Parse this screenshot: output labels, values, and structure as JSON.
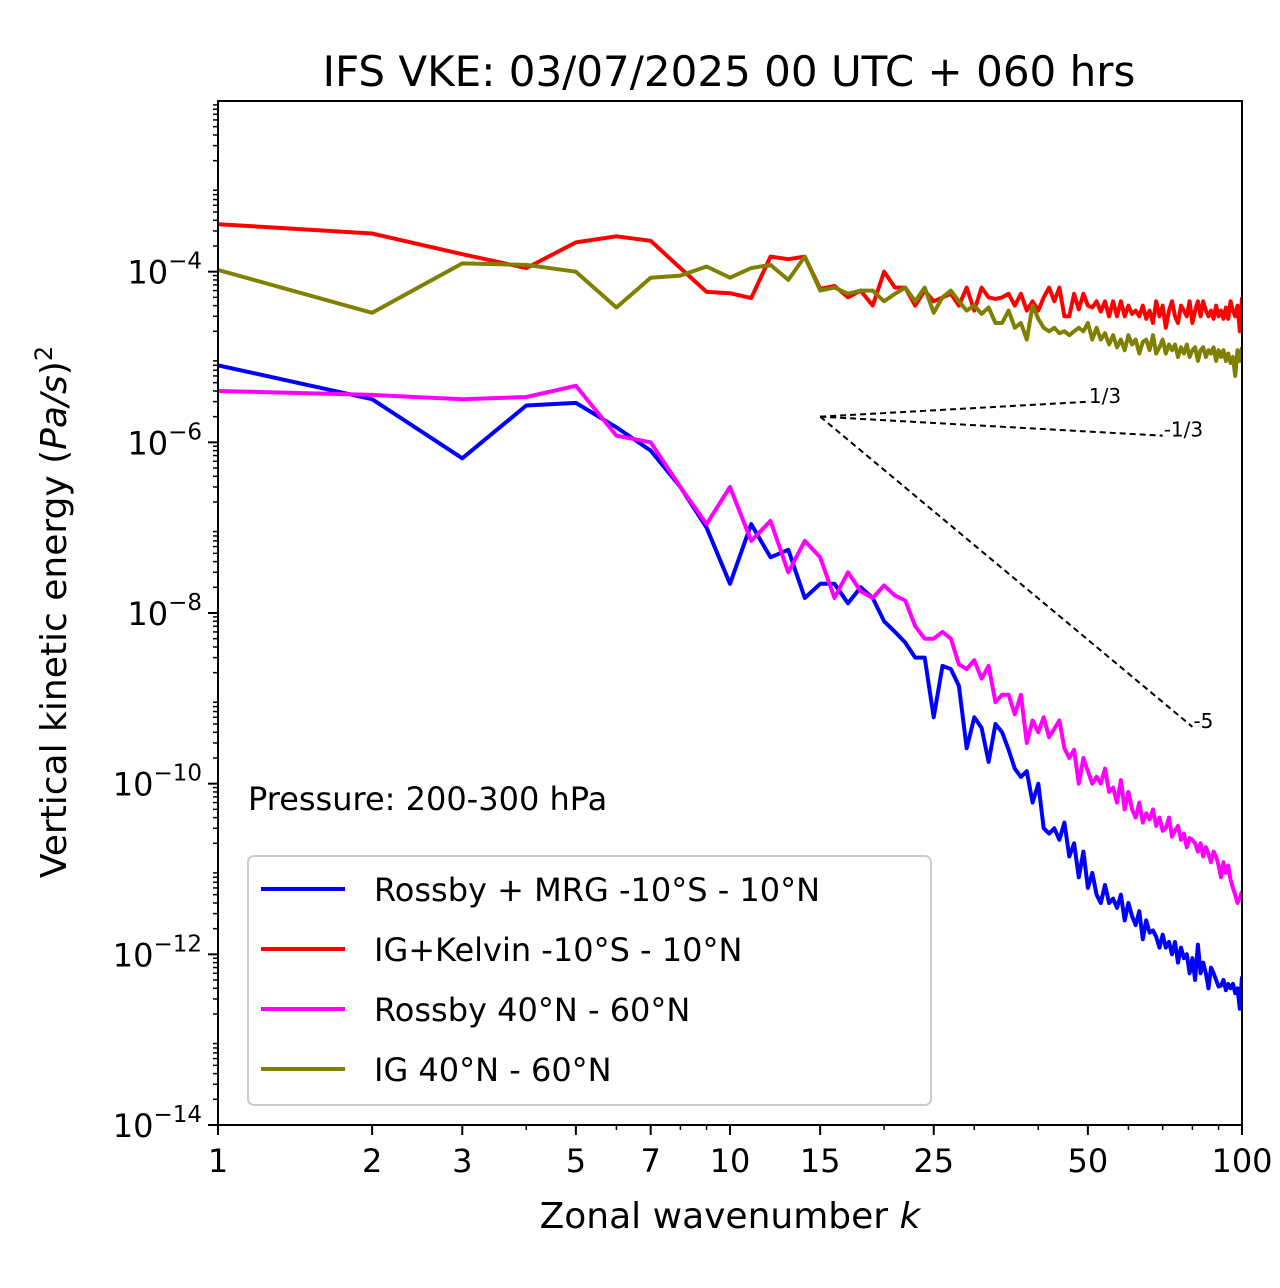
{
  "chart_data": {
    "type": "line",
    "title": "IFS VKE: 03/07/2025 00 UTC + 060 hrs",
    "xlabel": "Zonal wavenumber k",
    "ylabel": "Vertical kinetic energy (Pa/s)²",
    "x_scale": "log",
    "y_scale": "log",
    "xlim": [
      1,
      100
    ],
    "ylim": [
      1e-14,
      0.01
    ],
    "x_ticks": [
      {
        "value": 1,
        "label": "1"
      },
      {
        "value": 2,
        "label": "2"
      },
      {
        "value": 3,
        "label": "3"
      },
      {
        "value": 5,
        "label": "5"
      },
      {
        "value": 7,
        "label": "7"
      },
      {
        "value": 10,
        "label": "10"
      },
      {
        "value": 15,
        "label": "15"
      },
      {
        "value": 25,
        "label": "25"
      },
      {
        "value": 50,
        "label": "50"
      },
      {
        "value": 100,
        "label": "100"
      }
    ],
    "y_ticks": [
      {
        "value": 1e-14,
        "exponent": "−14"
      },
      {
        "value": 1e-12,
        "exponent": "−12"
      },
      {
        "value": 1e-10,
        "exponent": "−10"
      },
      {
        "value": 1e-08,
        "exponent": "−8"
      },
      {
        "value": 1e-06,
        "exponent": "−6"
      },
      {
        "value": 0.0001,
        "exponent": "−4"
      }
    ],
    "legend_position": "lower-left",
    "annotation": "Pressure: 200-300 hPa",
    "reference_slopes": [
      {
        "label": "1/3",
        "slope": 0.3333,
        "x": [
          15,
          50
        ],
        "y0": 2e-06
      },
      {
        "label": "-1/3",
        "slope": -0.3333,
        "x": [
          15,
          70
        ],
        "y0": 2e-06
      },
      {
        "label": "-5",
        "slope": -5,
        "x": [
          15,
          80
        ],
        "y0": 2e-06
      }
    ],
    "series": [
      {
        "name": "Rossby + MRG -10°S - 10°N",
        "color": "#0000ff",
        "x": [
          1,
          2,
          3,
          4,
          5,
          6,
          7,
          8,
          9,
          10,
          11,
          12,
          13,
          14,
          15,
          16,
          17,
          18,
          19,
          20,
          21,
          22,
          23,
          24,
          25,
          26,
          27,
          28,
          29,
          30,
          31,
          32,
          33,
          34,
          35,
          36,
          37,
          38,
          39,
          40,
          41,
          42,
          43,
          44,
          45,
          46,
          47,
          48,
          49,
          50,
          51,
          52,
          53,
          54,
          55,
          56,
          57,
          58,
          59,
          60,
          61,
          62,
          63,
          64,
          65,
          66,
          67,
          68,
          69,
          70,
          71,
          72,
          73,
          74,
          75,
          76,
          77,
          78,
          79,
          80,
          81,
          82,
          83,
          84,
          85,
          86,
          87,
          88,
          89,
          90,
          91,
          92,
          93,
          94,
          95,
          96,
          97,
          98,
          99,
          100
        ],
        "y": [
          8e-06,
          3.2e-06,
          6.5e-07,
          2.7e-06,
          2.9e-06,
          1.5e-06,
          8e-07,
          3e-07,
          1e-07,
          2.2e-08,
          1.1e-07,
          4.5e-08,
          5.5e-08,
          1.5e-08,
          2.2e-08,
          2.2e-08,
          1.3e-08,
          2e-08,
          1.5e-08,
          8e-09,
          6e-09,
          4.5e-09,
          3e-09,
          3e-09,
          6e-10,
          2.4e-09,
          2.2e-09,
          1.4e-09,
          2.6e-10,
          6e-10,
          4.5e-10,
          1.8e-10,
          5e-10,
          4e-10,
          2.5e-10,
          1.5e-10,
          1.2e-10,
          1.4e-10,
          6e-11,
          1e-10,
          3e-11,
          2.6e-11,
          3e-11,
          2.2e-11,
          3.5e-11,
          1.4e-11,
          2e-11,
          8e-12,
          1.6e-11,
          6e-12,
          9e-12,
          5e-12,
          4e-12,
          6.5e-12,
          4e-12,
          4.5e-12,
          3.5e-12,
          5e-12,
          2.5e-12,
          4e-12,
          2.8e-12,
          2.2e-12,
          3.2e-12,
          1.5e-12,
          2.5e-12,
          1.8e-12,
          1.9e-12,
          1.6e-12,
          1.2e-12,
          1.7e-12,
          1.2e-12,
          1.4e-12,
          1e-12,
          1.4e-12,
          8e-13,
          1.2e-12,
          9e-13,
          1e-12,
          6e-13,
          9e-13,
          5e-13,
          1.3e-12,
          6e-13,
          8e-13,
          6e-13,
          4e-13,
          7e-13,
          6e-13,
          5e-13,
          4.2e-13,
          4.3e-13,
          5e-13,
          3.8e-13,
          4.5e-13,
          4e-13,
          4.5e-13,
          3.5e-13,
          4e-13,
          2.3e-13,
          5.5e-13
        ]
      },
      {
        "name": "IG+Kelvin -10°S - 10°N",
        "color": "#ff0000",
        "x": [
          1,
          2,
          3,
          4,
          5,
          6,
          7,
          8,
          9,
          10,
          11,
          12,
          13,
          14,
          15,
          16,
          17,
          18,
          19,
          20,
          21,
          22,
          23,
          24,
          25,
          26,
          27,
          28,
          29,
          30,
          31,
          32,
          33,
          34,
          35,
          36,
          37,
          38,
          39,
          40,
          41,
          42,
          43,
          44,
          45,
          46,
          47,
          48,
          49,
          50,
          51,
          52,
          53,
          54,
          55,
          56,
          57,
          58,
          59,
          60,
          61,
          62,
          63,
          64,
          65,
          66,
          67,
          68,
          69,
          70,
          71,
          72,
          73,
          74,
          75,
          76,
          77,
          78,
          79,
          80,
          81,
          82,
          83,
          84,
          85,
          86,
          87,
          88,
          89,
          90,
          91,
          92,
          93,
          94,
          95,
          96,
          97,
          98,
          99,
          100
        ],
        "y": [
          0.00036,
          0.00028,
          0.00016,
          0.00011,
          0.00022,
          0.00026,
          0.00023,
          0.00011,
          5.8e-05,
          5.6e-05,
          4.9e-05,
          0.00015,
          0.00014,
          0.00015,
          6.3e-05,
          6.8e-05,
          5e-05,
          6e-05,
          4e-05,
          0.0001,
          6.5e-05,
          6.5e-05,
          4e-05,
          6e-05,
          4.5e-05,
          5e-05,
          5.5e-05,
          4e-05,
          6.5e-05,
          3.5e-05,
          6.5e-05,
          5e-05,
          4.8e-05,
          5e-05,
          5.5e-05,
          4e-05,
          5.5e-05,
          3.5e-05,
          4.5e-05,
          3.5e-05,
          5e-05,
          6.5e-05,
          4.5e-05,
          6.5e-05,
          3e-05,
          3e-05,
          5.5e-05,
          3.6e-05,
          5.5e-05,
          4e-05,
          3.8e-05,
          4.5e-05,
          3.4e-05,
          4.5e-05,
          3e-05,
          4.5e-05,
          3e-05,
          4.5e-05,
          3e-05,
          4e-05,
          3.2e-05,
          3.5e-05,
          3e-05,
          4e-05,
          2.8e-05,
          3.5e-05,
          2.5e-05,
          4.5e-05,
          3e-05,
          4e-05,
          2.2e-05,
          3.5e-05,
          4.5e-05,
          3e-05,
          2.5e-05,
          4e-05,
          3.5e-05,
          3e-05,
          4.5e-05,
          2.5e-05,
          3.5e-05,
          4.5e-05,
          3e-05,
          4.5e-05,
          3.5e-05,
          3e-05,
          3.5e-05,
          2.8e-05,
          4e-05,
          3e-05,
          3.5e-05,
          2.8e-05,
          3.8e-05,
          2.8e-05,
          4.5e-05,
          3.5e-05,
          3e-05,
          4e-05,
          2e-05,
          5e-05
        ]
      },
      {
        "name": "Rossby 40°N - 60°N",
        "color": "#ff00ff",
        "x": [
          1,
          2,
          3,
          4,
          5,
          6,
          7,
          8,
          9,
          10,
          11,
          12,
          13,
          14,
          15,
          16,
          17,
          18,
          19,
          20,
          21,
          22,
          23,
          24,
          25,
          26,
          27,
          28,
          29,
          30,
          31,
          32,
          33,
          34,
          35,
          36,
          37,
          38,
          39,
          40,
          41,
          42,
          43,
          44,
          45,
          46,
          47,
          48,
          49,
          50,
          51,
          52,
          53,
          54,
          55,
          56,
          57,
          58,
          59,
          60,
          61,
          62,
          63,
          64,
          65,
          66,
          67,
          68,
          69,
          70,
          71,
          72,
          73,
          74,
          75,
          76,
          77,
          78,
          79,
          80,
          81,
          82,
          83,
          84,
          85,
          86,
          87,
          88,
          89,
          90,
          91,
          92,
          93,
          94,
          95,
          96,
          97,
          98,
          99,
          100
        ],
        "y": [
          4e-06,
          3.6e-06,
          3.2e-06,
          3.4e-06,
          4.6e-06,
          1.2e-06,
          1e-06,
          3e-07,
          1.1e-07,
          3e-07,
          7e-08,
          1.2e-07,
          3e-08,
          7e-08,
          4.5e-08,
          1.5e-08,
          3e-08,
          1.8e-08,
          1.5e-08,
          2.1e-08,
          1.6e-08,
          1.4e-08,
          7e-09,
          5e-09,
          5e-09,
          6e-09,
          5e-09,
          2.5e-09,
          2.2e-09,
          2.8e-09,
          1.7e-09,
          2.4e-09,
          9e-10,
          1.1e-09,
          1.1e-09,
          6.5e-10,
          1.1e-09,
          3e-10,
          5.5e-10,
          4e-10,
          6e-10,
          3.5e-10,
          4.4e-10,
          5.5e-10,
          2.6e-10,
          2e-10,
          2.5e-10,
          1e-10,
          2e-10,
          1.4e-10,
          1e-10,
          1.2e-10,
          1e-10,
          1.5e-10,
          8e-11,
          9e-11,
          6e-11,
          1.1e-10,
          5e-11,
          8e-11,
          5e-11,
          4e-11,
          6e-11,
          3.5e-11,
          4.5e-11,
          3.8e-11,
          5e-11,
          3.2e-11,
          4e-11,
          2.8e-11,
          3e-11,
          4e-11,
          2.4e-11,
          2.8e-11,
          3.2e-11,
          2.2e-11,
          2.6e-11,
          1.8e-11,
          2.3e-11,
          2.2e-11,
          2e-11,
          1.6e-11,
          2e-11,
          1.4e-11,
          1.8e-11,
          1.5e-11,
          1.2e-11,
          1.6e-11,
          1.4e-11,
          1.1e-11,
          8e-12,
          1.2e-11,
          9e-12,
          1.1e-11,
          7.5e-12,
          6e-12,
          5e-12,
          4e-12,
          4.5e-12,
          5.5e-12
        ]
      },
      {
        "name": "IG 40°N - 60°N",
        "color": "#808000",
        "x": [
          1,
          2,
          3,
          4,
          5,
          6,
          7,
          8,
          9,
          10,
          11,
          12,
          13,
          14,
          15,
          16,
          17,
          18,
          19,
          20,
          21,
          22,
          23,
          24,
          25,
          26,
          27,
          28,
          29,
          30,
          31,
          32,
          33,
          34,
          35,
          36,
          37,
          38,
          39,
          40,
          41,
          42,
          43,
          44,
          45,
          46,
          47,
          48,
          49,
          50,
          51,
          52,
          53,
          54,
          55,
          56,
          57,
          58,
          59,
          60,
          61,
          62,
          63,
          64,
          65,
          66,
          67,
          68,
          69,
          70,
          71,
          72,
          73,
          74,
          75,
          76,
          77,
          78,
          79,
          80,
          81,
          82,
          83,
          84,
          85,
          86,
          87,
          88,
          89,
          90,
          91,
          92,
          93,
          94,
          95,
          96,
          97,
          98,
          99,
          100
        ],
        "y": [
          0.000105,
          3.3e-05,
          0.000125,
          0.00012,
          0.0001,
          3.8e-05,
          8.5e-05,
          9e-05,
          0.000115,
          8.5e-05,
          0.00011,
          0.00012,
          8e-05,
          0.00015,
          6e-05,
          6.5e-05,
          5.5e-05,
          6e-05,
          6e-05,
          4.5e-05,
          5.5e-05,
          6.5e-05,
          4.5e-05,
          6.5e-05,
          3.3e-05,
          5e-05,
          6e-05,
          4.5e-05,
          3.5e-05,
          4e-05,
          3.2e-05,
          3.8e-05,
          2.5e-05,
          2.5e-05,
          3.5e-05,
          2.2e-05,
          2.5e-05,
          1.6e-05,
          4e-05,
          2.8e-05,
          2.2e-05,
          2e-05,
          2.2e-05,
          1.9e-05,
          2e-05,
          1.8e-05,
          2e-05,
          2.2e-05,
          2e-05,
          2.5e-05,
          1.6e-05,
          2.2e-05,
          1.6e-05,
          1.9e-05,
          1.4e-05,
          1.8e-05,
          1.3e-05,
          1.6e-05,
          1.2e-05,
          1.8e-05,
          1.4e-05,
          1.6e-05,
          1.1e-05,
          1.5e-05,
          1.6e-05,
          1.2e-05,
          1.8e-05,
          1.1e-05,
          1.3e-05,
          1.6e-05,
          1.1e-05,
          1.4e-05,
          1.2e-05,
          1.4e-05,
          1e-05,
          1.3e-05,
          1.1e-05,
          1.4e-05,
          1e-05,
          1.2e-05,
          1.3e-05,
          9e-06,
          1.2e-05,
          1.3e-05,
          1e-05,
          1.2e-05,
          1.1e-05,
          1.3e-05,
          9e-06,
          1.2e-05,
          1e-05,
          1.2e-05,
          9e-06,
          1.1e-05,
          8.5e-06,
          1e-05,
          6e-06,
          1.2e-05,
          9e-06,
          1.3e-05
        ]
      }
    ]
  }
}
